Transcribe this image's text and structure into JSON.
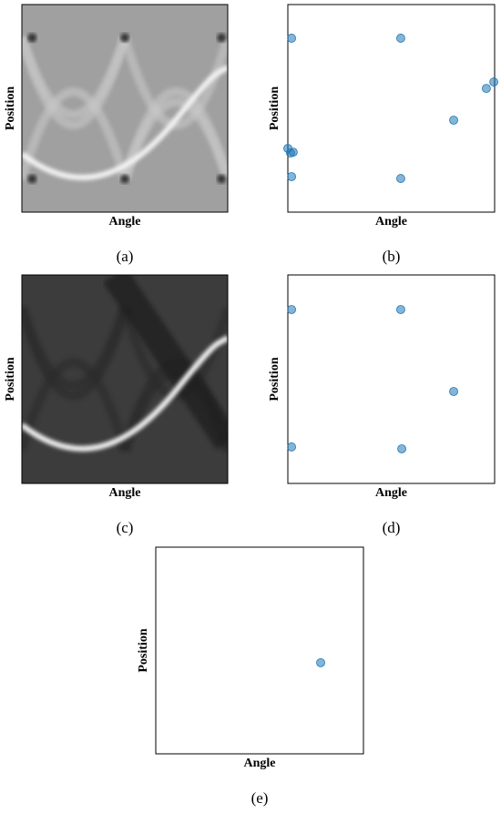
{
  "chart_data": [
    {
      "type": "image",
      "xlabel": "Angle",
      "ylabel": "Position",
      "caption": "(a)",
      "shade": "light"
    },
    {
      "type": "scatter",
      "xlabel": "Angle",
      "ylabel": "Position",
      "caption": "(b)",
      "color": "#1f77b4",
      "x": [
        1.8,
        54.6,
        96.0,
        99.6,
        80.2,
        0,
        1.3,
        2.6,
        1.8,
        54.6
      ],
      "y": [
        83.8,
        83.8,
        59.6,
        62.7,
        44.3,
        30.7,
        28.5,
        28.9,
        17.1,
        16.2
      ],
      "xlim": [
        0,
        100
      ],
      "ylim": [
        0,
        100
      ]
    },
    {
      "type": "image",
      "xlabel": "Angle",
      "ylabel": "Position",
      "caption": "(c)",
      "shade": "dark"
    },
    {
      "type": "scatter",
      "xlabel": "Angle",
      "ylabel": "Position",
      "caption": "(d)",
      "color": "#1f77b4",
      "x": [
        1.8,
        54.6,
        80.2,
        1.8,
        55.1
      ],
      "y": [
        83.4,
        83.4,
        44.1,
        17.5,
        16.6
      ],
      "xlim": [
        0,
        100
      ],
      "ylim": [
        0,
        100
      ]
    },
    {
      "type": "scatter",
      "xlabel": "Angle",
      "ylabel": "Position",
      "caption": "(e)",
      "color": "#1f77b4",
      "x": [
        79.4
      ],
      "y": [
        44.1
      ],
      "xlim": [
        0,
        100
      ],
      "ylim": [
        0,
        100
      ]
    }
  ]
}
